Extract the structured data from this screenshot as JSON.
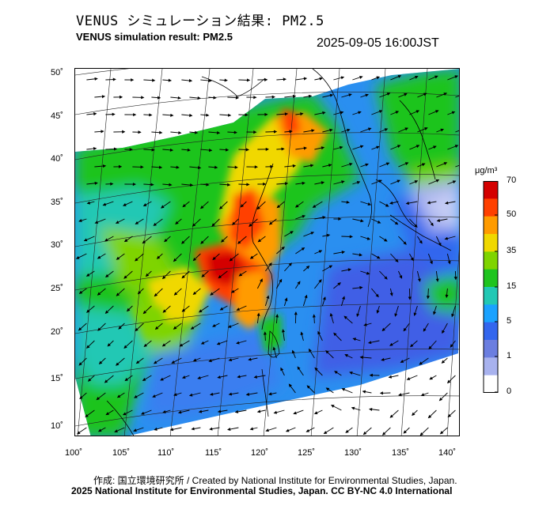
{
  "header": {
    "title_jp": "VENUS シミュレーション結果: PM2.5",
    "title_en": "VENUS simulation result: PM2.5",
    "timestamp": "2025-09-05 16:00JST"
  },
  "map": {
    "lat_labels": [
      "50˚",
      "45˚",
      "40˚",
      "35˚",
      "30˚",
      "25˚",
      "20˚",
      "15˚",
      "10˚"
    ],
    "lon_labels": [
      "100˚",
      "105˚",
      "110˚",
      "115˚",
      "120˚",
      "125˚",
      "130˚",
      "135˚",
      "140˚"
    ]
  },
  "colorbar": {
    "unit": "μg/m³",
    "levels": [
      "70",
      "50",
      "35",
      "15",
      "5",
      "1",
      "0"
    ],
    "colors": [
      "#d40000",
      "#ff4000",
      "#ff9b00",
      "#f0d800",
      "#7fd400",
      "#1fc41f",
      "#22c8b4",
      "#1aa2ff",
      "#3366ee",
      "#6b7ee0",
      "#a8b2ee",
      "#ffffff"
    ]
  },
  "footer": {
    "credit_jp": "作成: 国立環境研究所 / Created by National Institute for Environmental Studies, Japan.",
    "copyright": "2025 National Institute for Environmental Studies, Japan. CC BY-NC 4.0 International"
  }
}
